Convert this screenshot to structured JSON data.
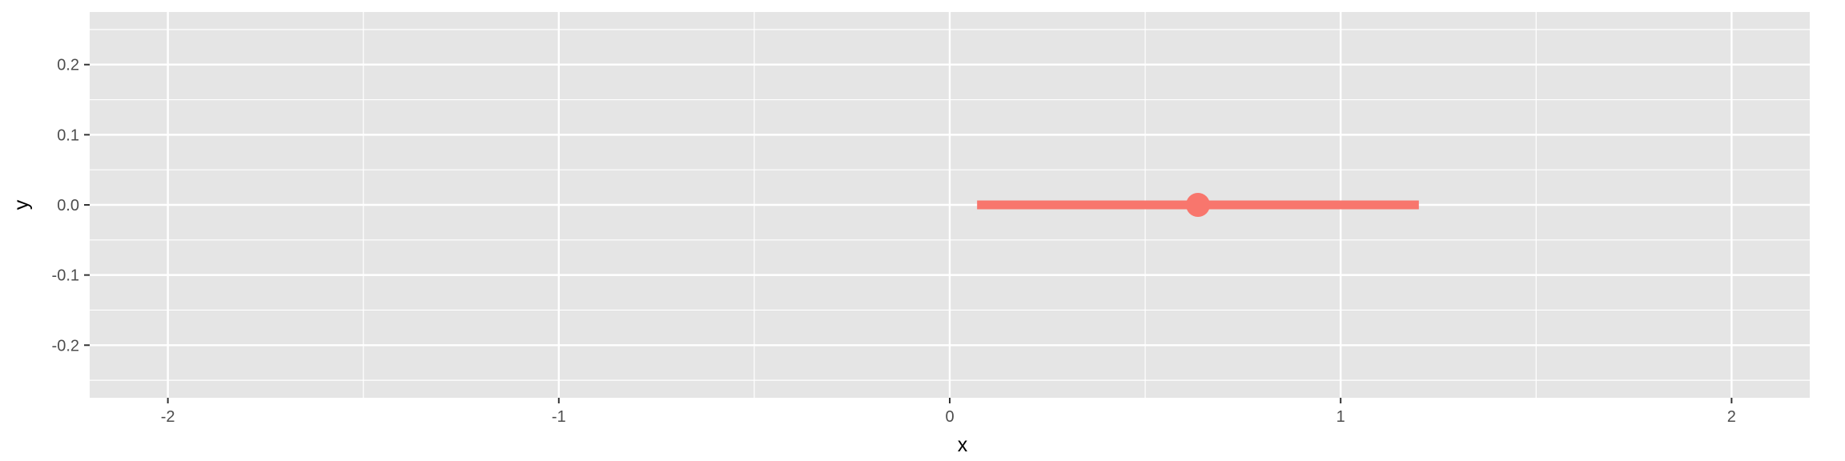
{
  "chart_data": {
    "type": "pointrange",
    "xlabel": "x",
    "ylabel": "y",
    "xlim": [
      -2.2,
      2.2
    ],
    "ylim": [
      -0.275,
      0.275
    ],
    "x_ticks": [
      -2,
      -1,
      0,
      1,
      2
    ],
    "x_tick_labels": [
      "-2",
      "-1",
      "0",
      "1",
      "2"
    ],
    "y_ticks": [
      -0.2,
      -0.1,
      0.0,
      0.1,
      0.2
    ],
    "y_tick_labels": [
      "-0.2",
      "-0.1",
      "0.0",
      "0.1",
      "0.2"
    ],
    "grid": true,
    "series": [
      {
        "x": 0.635,
        "y": 0.0,
        "xmin": 0.07,
        "xmax": 1.2,
        "color": "#F8766D"
      }
    ]
  },
  "style": {
    "panel_background": "#E5E5E5",
    "grid_color": "#FFFFFF",
    "tick_color": "#333333"
  }
}
